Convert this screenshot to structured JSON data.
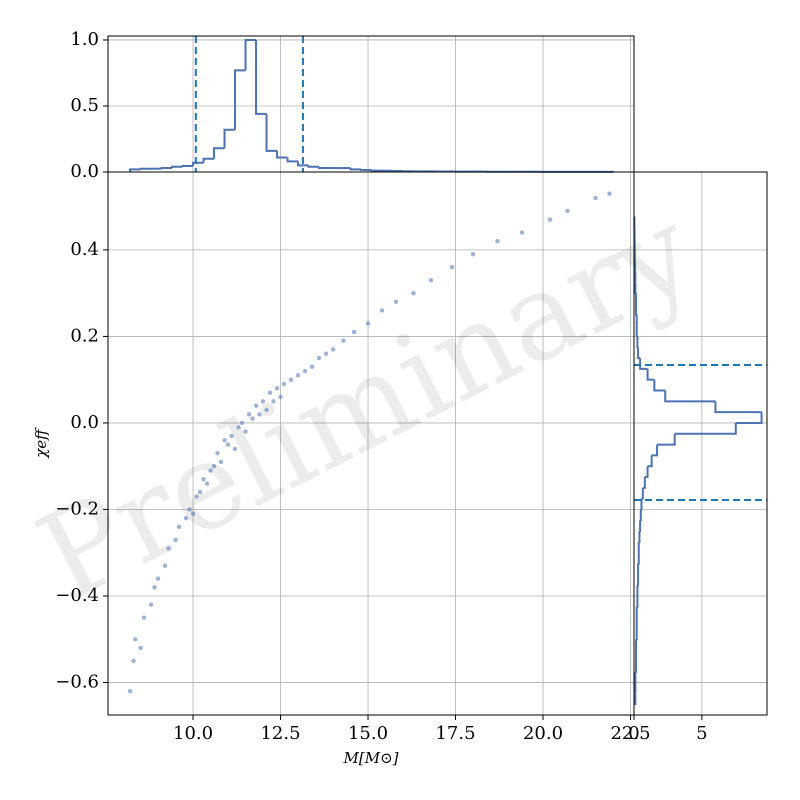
{
  "chart_data": [
    {
      "type": "scatter",
      "xlabel": "M[M⊙]",
      "ylabel": "χeff",
      "watermark": "Preliminary",
      "color": "#4c72b0",
      "grid": true,
      "x": [
        8.2,
        8.3,
        8.35,
        8.5,
        8.6,
        8.8,
        8.9,
        9.0,
        9.2,
        9.3,
        9.5,
        9.6,
        9.8,
        9.9,
        10.0,
        10.1,
        10.2,
        10.3,
        10.4,
        10.5,
        10.6,
        10.7,
        10.8,
        10.9,
        11.0,
        11.1,
        11.2,
        11.3,
        11.4,
        11.5,
        11.6,
        11.7,
        11.8,
        11.9,
        12.0,
        12.1,
        12.2,
        12.3,
        12.4,
        12.5,
        12.6,
        12.8,
        13.0,
        13.2,
        13.4,
        13.6,
        13.8,
        14.0,
        14.3,
        14.6,
        15.0,
        15.4,
        15.8,
        16.3,
        16.8,
        17.4,
        18.0,
        18.7,
        19.4,
        20.2,
        20.7,
        21.5,
        21.9
      ],
      "values": [
        -0.62,
        -0.55,
        -0.5,
        -0.52,
        -0.45,
        -0.42,
        -0.38,
        -0.36,
        -0.33,
        -0.29,
        -0.27,
        -0.24,
        -0.22,
        -0.2,
        -0.21,
        -0.17,
        -0.16,
        -0.13,
        -0.14,
        -0.11,
        -0.1,
        -0.07,
        -0.09,
        -0.04,
        -0.05,
        -0.03,
        -0.06,
        -0.01,
        0.0,
        -0.02,
        0.02,
        0.01,
        0.04,
        0.02,
        0.05,
        0.03,
        0.07,
        0.05,
        0.08,
        0.06,
        0.09,
        0.1,
        0.11,
        0.12,
        0.13,
        0.15,
        0.16,
        0.17,
        0.19,
        0.21,
        0.23,
        0.26,
        0.28,
        0.3,
        0.33,
        0.36,
        0.39,
        0.42,
        0.44,
        0.47,
        0.49,
        0.52,
        0.53
      ],
      "xlim": [
        7.57,
        22.6
      ],
      "xticks": [
        {
          "value": 10,
          "label": "10.0"
        },
        12.5,
        {
          "value": 15,
          "label": "15.0"
        },
        17.5,
        {
          "value": 20,
          "label": "20.0"
        },
        22.5
      ],
      "ylim": [
        -0.675,
        0.58
      ],
      "yticks": [
        {
          "value": -0.6,
          "label": "−0.6"
        },
        {
          "value": -0.4,
          "label": "−0.4"
        },
        {
          "value": -0.2,
          "label": "−0.2"
        },
        {
          "value": 0,
          "label": "0.0"
        },
        0.2,
        0.4
      ]
    },
    {
      "type": "histogram",
      "orientation": "vertical",
      "color": "#4c72b0",
      "line_color": "#1f77b4",
      "grid": true,
      "bins": [
        8.2,
        8.5,
        8.8,
        9.1,
        9.4,
        9.7,
        10.0,
        10.3,
        10.6,
        10.9,
        11.2,
        11.5,
        11.8,
        12.1,
        12.4,
        12.7,
        13.0,
        13.3,
        13.6,
        13.9,
        14.2,
        14.5,
        14.8,
        15.1,
        15.4,
        15.7,
        16.0,
        16.3,
        16.6,
        16.9,
        17.2,
        17.5,
        17.8,
        18.1,
        18.4,
        18.7,
        19.0,
        19.3,
        19.6,
        19.9,
        20.2,
        20.5,
        20.8,
        21.1,
        21.4,
        21.7,
        22.0
      ],
      "values": [
        0.02,
        0.025,
        0.025,
        0.03,
        0.04,
        0.045,
        0.07,
        0.1,
        0.18,
        0.32,
        0.77,
        1.0,
        0.44,
        0.16,
        0.11,
        0.08,
        0.05,
        0.04,
        0.03,
        0.03,
        0.03,
        0.02,
        0.015,
        0.01,
        0.01,
        0.008,
        0.006,
        0.005,
        0.005,
        0.004,
        0.004,
        0.003,
        0.003,
        0.003,
        0.002,
        0.002,
        0.002,
        0.002,
        0.002,
        0.001,
        0.001,
        0.001,
        0.001,
        0.001,
        0.001,
        0.001
      ],
      "lines": [
        10.08,
        13.14
      ],
      "ylim": [
        0,
        1.03
      ],
      "yticks": [
        {
          "value": 0,
          "label": "0.0"
        },
        0.5,
        {
          "value": 1,
          "label": "1.0"
        }
      ]
    },
    {
      "type": "histogram",
      "orientation": "horizontal",
      "color": "#4c72b0",
      "line_color": "#1f77b4",
      "grid": true,
      "bins": [
        -0.65,
        -0.625,
        -0.6,
        -0.575,
        -0.55,
        -0.525,
        -0.5,
        -0.475,
        -0.45,
        -0.425,
        -0.4,
        -0.375,
        -0.35,
        -0.325,
        -0.3,
        -0.275,
        -0.25,
        -0.225,
        -0.2,
        -0.175,
        -0.15,
        -0.125,
        -0.1,
        -0.075,
        -0.05,
        -0.025,
        0,
        0.025,
        0.05,
        0.075,
        0.1,
        0.125,
        0.15,
        0.175,
        0.2,
        0.225,
        0.25,
        0.275,
        0.3,
        0.325,
        0.35,
        0.375,
        0.4,
        0.425,
        0.45,
        0.475
      ],
      "values": [
        0.1,
        0.1,
        0.1,
        0.15,
        0.15,
        0.15,
        0.2,
        0.2,
        0.2,
        0.25,
        0.25,
        0.3,
        0.3,
        0.35,
        0.35,
        0.4,
        0.45,
        0.5,
        0.55,
        0.65,
        0.8,
        1.0,
        1.3,
        1.7,
        3.0,
        7.5,
        9.4,
        6.0,
        2.3,
        1.5,
        1.0,
        0.45,
        0.3,
        0.25,
        0.2,
        0.2,
        0.15,
        0.15,
        0.1,
        0.1,
        0.08,
        0.06,
        0.05,
        0.04,
        0.03
      ],
      "lines": [
        0.134,
        -0.178
      ],
      "xlim": [
        0,
        9.8
      ],
      "xticks": [
        0,
        5
      ]
    }
  ]
}
